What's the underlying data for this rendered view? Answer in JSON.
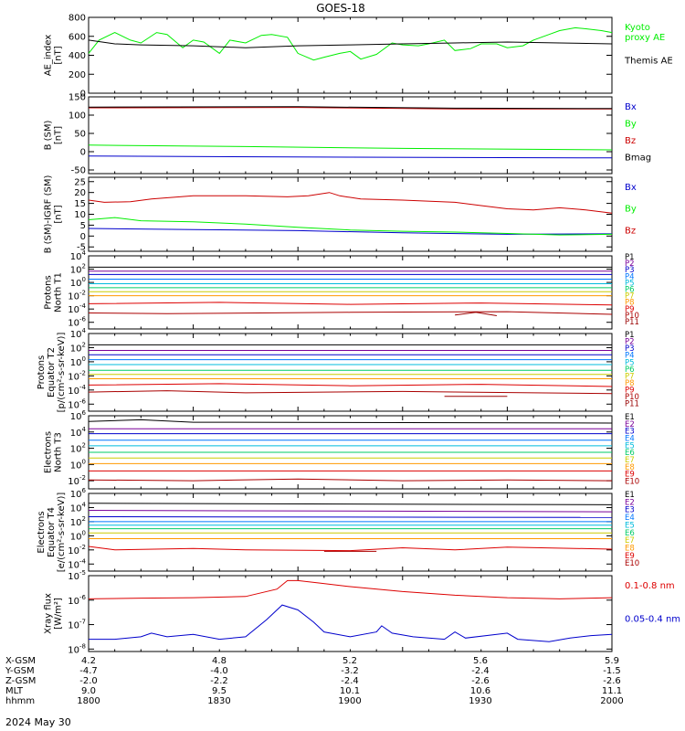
{
  "title": "GOES-18",
  "date": "2024 May 30",
  "chart_data": [
    {
      "type": "line",
      "ylabel": [
        "AE_index",
        "[nT]"
      ],
      "ylim": [
        0,
        800
      ],
      "yticks": [
        "800",
        "600",
        "400",
        "200",
        "0"
      ],
      "series": [
        {
          "name": "Kyoto\nproxy AE",
          "color": "#00ee00",
          "x": [
            0,
            0.02,
            0.05,
            0.08,
            0.1,
            0.13,
            0.15,
            0.18,
            0.2,
            0.22,
            0.25,
            0.27,
            0.3,
            0.33,
            0.35,
            0.38,
            0.4,
            0.43,
            0.45,
            0.48,
            0.5,
            0.52,
            0.55,
            0.58,
            0.6,
            0.63,
            0.65,
            0.68,
            0.7,
            0.73,
            0.75,
            0.78,
            0.8,
            0.83,
            0.85,
            0.88,
            0.9,
            0.93,
            0.95,
            0.98,
            1
          ],
          "y": [
            420,
            560,
            640,
            560,
            530,
            640,
            620,
            480,
            560,
            540,
            420,
            560,
            530,
            610,
            620,
            590,
            420,
            350,
            380,
            420,
            440,
            360,
            410,
            530,
            510,
            500,
            520,
            560,
            450,
            470,
            520,
            520,
            480,
            500,
            560,
            620,
            660,
            690,
            680,
            660,
            640
          ]
        },
        {
          "name": "Themis AE",
          "color": "#000000",
          "x": [
            0,
            0.05,
            0.1,
            0.2,
            0.3,
            0.4,
            0.5,
            0.6,
            0.7,
            0.8,
            0.9,
            1
          ],
          "y": [
            560,
            520,
            510,
            500,
            480,
            500,
            510,
            520,
            530,
            540,
            530,
            520
          ]
        }
      ]
    },
    {
      "type": "line",
      "ylabel": [
        "B (SM)",
        "[nT]"
      ],
      "ylim": [
        -60,
        150
      ],
      "yticks": [
        "150",
        "100",
        "50",
        "0",
        "-50"
      ],
      "series": [
        {
          "name": "Bx",
          "color": "#0000cc",
          "x": [
            0,
            0.5,
            1
          ],
          "y": [
            -12,
            -15,
            -17
          ]
        },
        {
          "name": "By",
          "color": "#00ee00",
          "x": [
            0,
            0.3,
            0.6,
            1
          ],
          "y": [
            18,
            14,
            9,
            5
          ]
        },
        {
          "name": "Bz",
          "color": "#cc0000",
          "x": [
            0,
            0.4,
            0.7,
            1
          ],
          "y": [
            120,
            121,
            117,
            117
          ]
        },
        {
          "name": "Bmag",
          "color": "#000000",
          "x": [
            0,
            0.4,
            0.7,
            1
          ],
          "y": [
            122,
            123,
            119,
            118
          ]
        }
      ]
    },
    {
      "type": "line",
      "ylabel": [
        "B (SM)-IGRF (SM)",
        "[nT]"
      ],
      "ylim": [
        -7,
        27
      ],
      "yticks": [
        "25",
        "20",
        "15",
        "10",
        "5",
        "0",
        "-5"
      ],
      "series": [
        {
          "name": "Bx",
          "color": "#0000cc",
          "x": [
            0,
            0.2,
            0.4,
            0.6,
            0.8,
            1
          ],
          "y": [
            3.5,
            3.0,
            2.5,
            1.5,
            0.8,
            1.0
          ]
        },
        {
          "name": "By",
          "color": "#00ee00",
          "x": [
            0,
            0.05,
            0.1,
            0.2,
            0.3,
            0.4,
            0.5,
            0.6,
            0.7,
            0.8,
            0.9,
            1
          ],
          "y": [
            7.5,
            8.5,
            7.0,
            6.5,
            5.5,
            4.0,
            2.8,
            2.2,
            1.8,
            1.2,
            0.5,
            0.8
          ]
        },
        {
          "name": "Bz",
          "color": "#cc0000",
          "x": [
            0,
            0.03,
            0.08,
            0.12,
            0.2,
            0.3,
            0.38,
            0.42,
            0.46,
            0.48,
            0.52,
            0.6,
            0.7,
            0.75,
            0.8,
            0.85,
            0.9,
            0.95,
            1
          ],
          "y": [
            16.5,
            15.5,
            15.8,
            17,
            18.5,
            18.5,
            18,
            18.5,
            20,
            18.5,
            17,
            16.5,
            15.5,
            14,
            12.5,
            12,
            13,
            12,
            10.5
          ]
        }
      ]
    },
    {
      "type": "line",
      "ylabel": [
        "Protons",
        "North T1"
      ],
      "yscale": "log",
      "ylim": [
        -7,
        4
      ],
      "ytick_exp": [
        "4",
        "2",
        "0",
        "-2",
        "-4",
        "-6"
      ],
      "series": [
        {
          "name": "P1",
          "color": "#000000",
          "x": [
            0,
            1
          ],
          "y": [
            2.3,
            2.3
          ]
        },
        {
          "name": "P2",
          "color": "#7a0099",
          "x": [
            0,
            1
          ],
          "y": [
            1.7,
            1.7
          ]
        },
        {
          "name": "P3",
          "color": "#0000cc",
          "x": [
            0,
            1
          ],
          "y": [
            1.2,
            1.2
          ]
        },
        {
          "name": "P4",
          "color": "#0077ff",
          "x": [
            0,
            1
          ],
          "y": [
            0.5,
            0.5
          ]
        },
        {
          "name": "P5",
          "color": "#00bbdd",
          "x": [
            0,
            1
          ],
          "y": [
            -0.2,
            -0.2
          ]
        },
        {
          "name": "P6",
          "color": "#00cc66",
          "x": [
            0,
            1
          ],
          "y": [
            -0.8,
            -0.8
          ]
        },
        {
          "name": "P7",
          "color": "#cccc00",
          "x": [
            0,
            1
          ],
          "y": [
            -1.4,
            -1.4
          ]
        },
        {
          "name": "P8",
          "color": "#ff9900",
          "x": [
            0,
            1
          ],
          "y": [
            -2.0,
            -2.0
          ]
        },
        {
          "name": "P9",
          "color": "#dd0000",
          "x": [
            0,
            0.25,
            0.5,
            0.75,
            1
          ],
          "y": [
            -3.2,
            -3.0,
            -3.3,
            -3.1,
            -3.4
          ]
        },
        {
          "name": "P10",
          "color": "#aa0000",
          "x": [
            0,
            0.15,
            0.5,
            0.8,
            1
          ],
          "y": [
            -4.6,
            -4.7,
            -4.5,
            -4.4,
            -4.8
          ]
        },
        {
          "name": "P11",
          "color": "#990000",
          "x": [
            0.7,
            0.74,
            0.78
          ],
          "y": [
            -4.9,
            -4.5,
            -5.0
          ]
        }
      ],
      "legend": [
        "P1",
        "P2",
        "P3",
        "P4",
        "P5",
        "P6",
        "P7",
        "P8",
        "P9",
        "P10",
        "P11"
      ]
    },
    {
      "type": "line",
      "ylabel": [
        "Protons",
        "Equator T2",
        "[p/(cm²-s-sr-keV)]"
      ],
      "yscale": "log",
      "ylim": [
        -7,
        4
      ],
      "ytick_exp": [
        "4",
        "2",
        "0",
        "-2",
        "-4",
        "-6"
      ],
      "series": [
        {
          "name": "P1",
          "color": "#000000",
          "x": [
            0,
            1
          ],
          "y": [
            2.4,
            2.4
          ]
        },
        {
          "name": "P2",
          "color": "#7a0099",
          "x": [
            0,
            1
          ],
          "y": [
            1.6,
            1.6
          ]
        },
        {
          "name": "P3",
          "color": "#0000cc",
          "x": [
            0,
            1
          ],
          "y": [
            1.0,
            1.0
          ]
        },
        {
          "name": "P4",
          "color": "#0077ff",
          "x": [
            0,
            1
          ],
          "y": [
            0.3,
            0.3
          ]
        },
        {
          "name": "P5",
          "color": "#00bbdd",
          "x": [
            0,
            1
          ],
          "y": [
            -0.4,
            -0.4
          ]
        },
        {
          "name": "P6",
          "color": "#00cc66",
          "x": [
            0,
            1
          ],
          "y": [
            -1.2,
            -1.2
          ]
        },
        {
          "name": "P7",
          "color": "#cccc00",
          "x": [
            0,
            1
          ],
          "y": [
            -1.8,
            -1.8
          ]
        },
        {
          "name": "P8",
          "color": "#ff9900",
          "x": [
            0,
            1
          ],
          "y": [
            -2.4,
            -2.4
          ]
        },
        {
          "name": "P9",
          "color": "#dd0000",
          "x": [
            0,
            0.25,
            0.5,
            0.75,
            1
          ],
          "y": [
            -3.3,
            -3.1,
            -3.4,
            -3.2,
            -3.5
          ]
        },
        {
          "name": "P10",
          "color": "#aa0000",
          "x": [
            0,
            0.15,
            0.3,
            0.6,
            1
          ],
          "y": [
            -4.3,
            -4.1,
            -4.4,
            -4.2,
            -4.5
          ]
        },
        {
          "name": "P11",
          "color": "#990000",
          "x": [
            0.68,
            0.8
          ],
          "y": [
            -4.9,
            -4.9
          ]
        }
      ],
      "legend": [
        "P1",
        "P2",
        "P3",
        "P4",
        "P5",
        "P6",
        "P7",
        "P8",
        "P9",
        "P10",
        "P11"
      ]
    },
    {
      "type": "line",
      "ylabel": [
        "Electrons",
        "North T3"
      ],
      "yscale": "log",
      "ylim": [
        -3,
        6
      ],
      "ytick_exp": [
        "6",
        "4",
        "2",
        "0",
        "-2"
      ],
      "series": [
        {
          "name": "E1",
          "color": "#000000",
          "x": [
            0,
            0.1,
            0.2,
            1
          ],
          "y": [
            5.3,
            5.5,
            5.2,
            5.1
          ]
        },
        {
          "name": "E2",
          "color": "#7a0099",
          "x": [
            0,
            1
          ],
          "y": [
            4.4,
            4.4
          ]
        },
        {
          "name": "E3",
          "color": "#0000cc",
          "x": [
            0,
            1
          ],
          "y": [
            3.8,
            3.8
          ]
        },
        {
          "name": "E4",
          "color": "#0077ff",
          "x": [
            0,
            1
          ],
          "y": [
            3.0,
            3.0
          ]
        },
        {
          "name": "E5",
          "color": "#00bbdd",
          "x": [
            0,
            1
          ],
          "y": [
            2.3,
            2.3
          ]
        },
        {
          "name": "E6",
          "color": "#00cc66",
          "x": [
            0,
            1
          ],
          "y": [
            1.5,
            1.5
          ]
        },
        {
          "name": "E7",
          "color": "#cccc00",
          "x": [
            0,
            1
          ],
          "y": [
            0.8,
            0.8
          ]
        },
        {
          "name": "E8",
          "color": "#ff9900",
          "x": [
            0,
            1
          ],
          "y": [
            0.1,
            0.1
          ]
        },
        {
          "name": "E9",
          "color": "#dd0000",
          "x": [
            0,
            1
          ],
          "y": [
            -0.8,
            -0.8
          ]
        },
        {
          "name": "E10",
          "color": "#aa0000",
          "x": [
            0,
            0.2,
            0.4,
            0.6,
            0.8,
            1
          ],
          "y": [
            -1.9,
            -2.0,
            -1.8,
            -2.0,
            -1.9,
            -2.0
          ]
        }
      ],
      "legend": [
        "E1",
        "E2",
        "E3",
        "E4",
        "E5",
        "E6",
        "E7",
        "E8",
        "E9",
        "E10"
      ]
    },
    {
      "type": "line",
      "ylabel": [
        "Electrons",
        "Equator T4",
        "[e/(cm²-s-sr-keV)]"
      ],
      "yscale": "log",
      "ylim": [
        -5,
        6
      ],
      "ytick_exp": [
        "6",
        "4",
        "2",
        "0",
        "-2",
        "-4"
      ],
      "series": [
        {
          "name": "E1",
          "color": "#000000",
          "x": [
            0,
            1
          ],
          "y": [
            4.6,
            4.4
          ]
        },
        {
          "name": "E2",
          "color": "#7a0099",
          "x": [
            0,
            1
          ],
          "y": [
            3.6,
            3.4
          ]
        },
        {
          "name": "E3",
          "color": "#0000cc",
          "x": [
            0,
            1
          ],
          "y": [
            2.7,
            2.6
          ]
        },
        {
          "name": "E4",
          "color": "#0077ff",
          "x": [
            0,
            1
          ],
          "y": [
            2.0,
            2.0
          ]
        },
        {
          "name": "E5",
          "color": "#00bbdd",
          "x": [
            0,
            1
          ],
          "y": [
            1.5,
            1.5
          ]
        },
        {
          "name": "E6",
          "color": "#00cc66",
          "x": [
            0,
            1
          ],
          "y": [
            1.0,
            1.0
          ]
        },
        {
          "name": "E7",
          "color": "#cccc00",
          "x": [
            0,
            1
          ],
          "y": [
            0.4,
            0.4
          ]
        },
        {
          "name": "E8",
          "color": "#ff9900",
          "x": [
            0,
            1
          ],
          "y": [
            -0.4,
            -0.4
          ]
        },
        {
          "name": "E9",
          "color": "#dd0000",
          "x": [
            0,
            0.05,
            0.2,
            0.3,
            0.5,
            0.6,
            0.7,
            0.8,
            1
          ],
          "y": [
            -1.5,
            -2.0,
            -1.8,
            -2.0,
            -2.1,
            -1.7,
            -2.0,
            -1.6,
            -1.9
          ]
        },
        {
          "name": "E10",
          "color": "#aa0000",
          "x": [
            0.45,
            0.55
          ],
          "y": [
            -2.2,
            -2.2
          ]
        }
      ],
      "legend": [
        "E1",
        "E2",
        "E3",
        "E4",
        "E5",
        "E6",
        "E7",
        "E8",
        "E9",
        "E10"
      ]
    },
    {
      "type": "line",
      "ylabel": [
        "Xray flux",
        "[W/m²]"
      ],
      "yscale": "log",
      "ylim": [
        -8.1,
        -5
      ],
      "ytick_exp": [
        "-5",
        "-6",
        "-7",
        "-8"
      ],
      "series": [
        {
          "name": "0.1-0.8 nm",
          "color": "#dd0000",
          "x": [
            0,
            0.1,
            0.2,
            0.3,
            0.36,
            0.38,
            0.4,
            0.44,
            0.5,
            0.6,
            0.7,
            0.8,
            0.9,
            1
          ],
          "y": [
            -5.95,
            -5.92,
            -5.9,
            -5.85,
            -5.55,
            -5.2,
            -5.2,
            -5.3,
            -5.45,
            -5.65,
            -5.8,
            -5.9,
            -5.95,
            -5.9
          ]
        },
        {
          "name": "0.05-0.4 nm",
          "color": "#0000cc",
          "x": [
            0,
            0.05,
            0.1,
            0.12,
            0.15,
            0.2,
            0.25,
            0.3,
            0.34,
            0.37,
            0.4,
            0.43,
            0.45,
            0.5,
            0.55,
            0.56,
            0.58,
            0.62,
            0.68,
            0.7,
            0.72,
            0.78,
            0.8,
            0.82,
            0.88,
            0.92,
            0.96,
            1
          ],
          "y": [
            -7.6,
            -7.6,
            -7.5,
            -7.35,
            -7.5,
            -7.4,
            -7.6,
            -7.5,
            -6.8,
            -6.2,
            -6.4,
            -6.9,
            -7.3,
            -7.5,
            -7.3,
            -7.05,
            -7.35,
            -7.5,
            -7.6,
            -7.3,
            -7.55,
            -7.4,
            -7.35,
            -7.6,
            -7.7,
            -7.55,
            -7.45,
            -7.4
          ]
        }
      ]
    }
  ],
  "xaxis": {
    "rows": [
      {
        "label": "X-GSM",
        "values": [
          "4.2",
          "4.8",
          "5.2",
          "5.6",
          "5.9"
        ]
      },
      {
        "label": "Y-GSM",
        "values": [
          "-4.7",
          "-4.0",
          "-3.2",
          "-2.4",
          "-1.5"
        ]
      },
      {
        "label": "Z-GSM",
        "values": [
          "-2.0",
          "-2.2",
          "-2.4",
          "-2.6",
          "-2.6"
        ]
      },
      {
        "label": "MLT",
        "values": [
          "9.0",
          "9.5",
          "10.1",
          "10.6",
          "11.1"
        ]
      },
      {
        "label": "hhmm",
        "values": [
          "1800",
          "1830",
          "1900",
          "1930",
          "2000"
        ]
      }
    ]
  }
}
